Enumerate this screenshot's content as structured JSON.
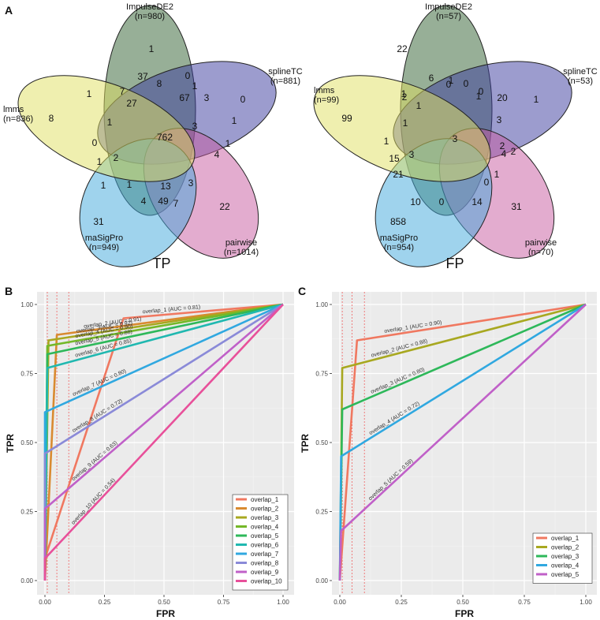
{
  "panels": {
    "a": "A",
    "b": "B",
    "c": "C"
  },
  "chart_data": [
    {
      "type": "venn",
      "title": "TP",
      "sets": [
        {
          "name": "ImpulseDE2",
          "n": "(n=980)",
          "color": "#2f5f2f"
        },
        {
          "name": "splineTC",
          "n": "(n=881)",
          "color": "#3a3a9e"
        },
        {
          "name": "pairwise",
          "n": "(n=1014)",
          "color": "#c85aa0"
        },
        {
          "name": "maSigPro",
          "n": "(n=949)",
          "color": "#3fa8dc"
        },
        {
          "name": "lmms",
          "n": "(n=836)",
          "color": "#e0e060"
        }
      ],
      "region_counts": [
        "1",
        "0",
        "22",
        "31",
        "8",
        "37",
        "0",
        "3",
        "4",
        "0",
        "7",
        "67",
        "1",
        "49",
        "1",
        "8",
        "27",
        "1",
        "13",
        "1",
        "3",
        "1",
        "1",
        "3",
        "2",
        "1",
        "4",
        "7",
        "1",
        "762"
      ]
    },
    {
      "type": "venn",
      "title": "FP",
      "sets": [
        {
          "name": "ImpulseDE2",
          "n": "(n=57)",
          "color": "#2f5f2f"
        },
        {
          "name": "splineTC",
          "n": "(n=53)",
          "color": "#3a3a9e"
        },
        {
          "name": "pairwise",
          "n": "(n=70)",
          "color": "#c85aa0"
        },
        {
          "name": "maSigPro",
          "n": "(n=954)",
          "color": "#3fa8dc"
        },
        {
          "name": "lmms",
          "n": "(n=99)",
          "color": "#e0e060"
        }
      ],
      "region_counts": [
        "22",
        "1",
        "31",
        "858",
        "99",
        "6",
        "1",
        "0",
        "10",
        "1",
        "1",
        "20",
        "3",
        "14",
        "2",
        "0",
        "1",
        "21",
        "2",
        "0",
        "15",
        "2",
        "1",
        "0",
        "3",
        "1",
        "4",
        "0",
        "1",
        "3"
      ]
    },
    {
      "type": "line",
      "xlabel": "FPR",
      "ylabel": "TPR",
      "xlim": [
        0,
        1
      ],
      "ylim": [
        0,
        1
      ],
      "xticks": [
        "0.00",
        "0.25",
        "0.50",
        "0.75",
        "1.00"
      ],
      "yticks": [
        "0.00",
        "0.25",
        "0.50",
        "0.75",
        "1.00"
      ],
      "reference_lines_x": [
        0.01,
        0.05,
        0.1
      ],
      "series": [
        {
          "name": "overlap_1",
          "color": "#f07860",
          "label": "overlap_1 (AUC = 0.81)",
          "points": [
            [
              0,
              0
            ],
            [
              0,
              0.08
            ],
            [
              0.33,
              0.95
            ],
            [
              1,
              1
            ]
          ]
        },
        {
          "name": "overlap_2",
          "color": "#d98a30",
          "label": "overlap_2 (AUC = 0.91)",
          "points": [
            [
              0,
              0
            ],
            [
              0.05,
              0.89
            ],
            [
              1,
              1
            ]
          ]
        },
        {
          "name": "overlap_3",
          "color": "#a8a820",
          "label": "overlap_3(AUC = 0.92)",
          "points": [
            [
              0,
              0
            ],
            [
              0.015,
              0.87
            ],
            [
              1,
              1
            ]
          ]
        },
        {
          "name": "overlap_4",
          "color": "#74b828",
          "label": "overlap_4 (AUC = 0.90)",
          "points": [
            [
              0,
              0
            ],
            [
              0.01,
              0.85
            ],
            [
              1,
              1
            ]
          ]
        },
        {
          "name": "overlap_5",
          "color": "#2eb85a",
          "label": "overlap_5 (AUC = 0.88)",
          "points": [
            [
              0,
              0
            ],
            [
              0.01,
              0.82
            ],
            [
              1,
              1
            ]
          ]
        },
        {
          "name": "overlap_6",
          "color": "#20b8b0",
          "label": "overlap_6 (AUC = 0.85)",
          "points": [
            [
              0,
              0
            ],
            [
              0.01,
              0.77
            ],
            [
              1,
              1
            ]
          ]
        },
        {
          "name": "overlap_7",
          "color": "#30a8e0",
          "label": "overlap_7 (AUC = 0.80)",
          "points": [
            [
              0,
              0
            ],
            [
              0,
              0.61
            ],
            [
              1,
              1
            ]
          ]
        },
        {
          "name": "overlap_8",
          "color": "#8a8ad8",
          "label": "overlap_8 (AUC = 0.72)",
          "points": [
            [
              0,
              0
            ],
            [
              0,
              0.46
            ],
            [
              1,
              1
            ]
          ]
        },
        {
          "name": "overlap_9",
          "color": "#c060c8",
          "label": "overlap_9 (AUC = 0.63)",
          "points": [
            [
              0,
              0
            ],
            [
              0,
              0.26
            ],
            [
              1,
              1
            ]
          ]
        },
        {
          "name": "overlap_10",
          "color": "#e8509a",
          "label": "overlap_10 (AUC = 0.54)",
          "points": [
            [
              0,
              0
            ],
            [
              0,
              0.08
            ],
            [
              1,
              1
            ]
          ]
        }
      ]
    },
    {
      "type": "line",
      "xlabel": "FPR",
      "ylabel": "TPR",
      "xlim": [
        0,
        1
      ],
      "ylim": [
        0,
        1
      ],
      "xticks": [
        "0.00",
        "0.25",
        "0.50",
        "0.75",
        "1.00"
      ],
      "yticks": [
        "0.00",
        "0.25",
        "0.50",
        "0.75",
        "1.00"
      ],
      "reference_lines_x": [
        0.01,
        0.05,
        0.1
      ],
      "series": [
        {
          "name": "overlap_1",
          "color": "#f07860",
          "label": "overlap_1 (AUC = 0.90)",
          "points": [
            [
              0,
              0
            ],
            [
              0.07,
              0.87
            ],
            [
              1,
              1
            ]
          ]
        },
        {
          "name": "overlap_2",
          "color": "#a8a820",
          "label": "overlap_2 (AUC = 0.88)",
          "points": [
            [
              0,
              0
            ],
            [
              0.01,
              0.77
            ],
            [
              1,
              1
            ]
          ]
        },
        {
          "name": "overlap_3",
          "color": "#2eb85a",
          "label": "overlap_3 (AUC = 0.80)",
          "points": [
            [
              0,
              0
            ],
            [
              0.01,
              0.62
            ],
            [
              1,
              1
            ]
          ]
        },
        {
          "name": "overlap_4",
          "color": "#30a8e0",
          "label": "overlap_4 (AUC = 0.72)",
          "points": [
            [
              0,
              0
            ],
            [
              0.005,
              0.45
            ],
            [
              1,
              1
            ]
          ]
        },
        {
          "name": "overlap_5",
          "color": "#c060c8",
          "label": "overlap_5 (AUC = 0.59)",
          "points": [
            [
              0,
              0
            ],
            [
              0.005,
              0.18
            ],
            [
              1,
              1
            ]
          ]
        }
      ]
    }
  ]
}
